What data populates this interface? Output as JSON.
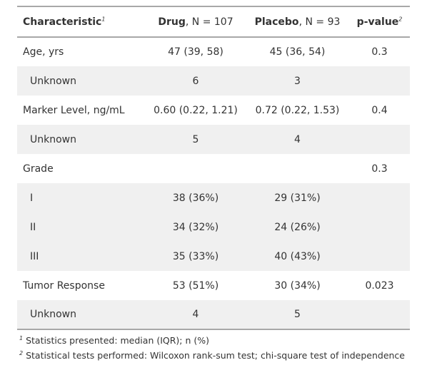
{
  "header": {
    "characteristic": "Characteristic",
    "characteristic_fn": "1",
    "drug_name": "Drug",
    "drug_n": ", N = 107",
    "placebo_name": "Placebo",
    "placebo_n": ", N = 93",
    "pvalue": "p-value",
    "pvalue_fn": "2"
  },
  "rows": [
    {
      "label": "Age, yrs",
      "drug": "47 (39, 58)",
      "placebo": "45 (36, 54)",
      "p": "0.3"
    },
    {
      "label": "Unknown",
      "drug": "6",
      "placebo": "3",
      "p": ""
    },
    {
      "label": "Marker Level, ng/mL",
      "drug": "0.60 (0.22, 1.21)",
      "placebo": "0.72 (0.22, 1.53)",
      "p": "0.4"
    },
    {
      "label": "Unknown",
      "drug": "5",
      "placebo": "4",
      "p": ""
    },
    {
      "label": "Grade",
      "drug": "",
      "placebo": "",
      "p": "0.3"
    },
    {
      "label": "I",
      "drug": "38 (36%)",
      "placebo": "29 (31%)",
      "p": ""
    },
    {
      "label": "II",
      "drug": "34 (32%)",
      "placebo": "24 (26%)",
      "p": ""
    },
    {
      "label": "III",
      "drug": "35 (33%)",
      "placebo": "40 (43%)",
      "p": ""
    },
    {
      "label": "Tumor Response",
      "drug": "53 (51%)",
      "placebo": "30 (34%)",
      "p": "0.023"
    },
    {
      "label": "Unknown",
      "drug": "4",
      "placebo": "5",
      "p": ""
    }
  ],
  "footnotes": [
    {
      "marker": "1",
      "text": " Statistics presented: median (IQR); n (%)"
    },
    {
      "marker": "2",
      "text": " Statistical tests performed: Wilcoxon rank-sum test; chi-square test of independence"
    }
  ]
}
